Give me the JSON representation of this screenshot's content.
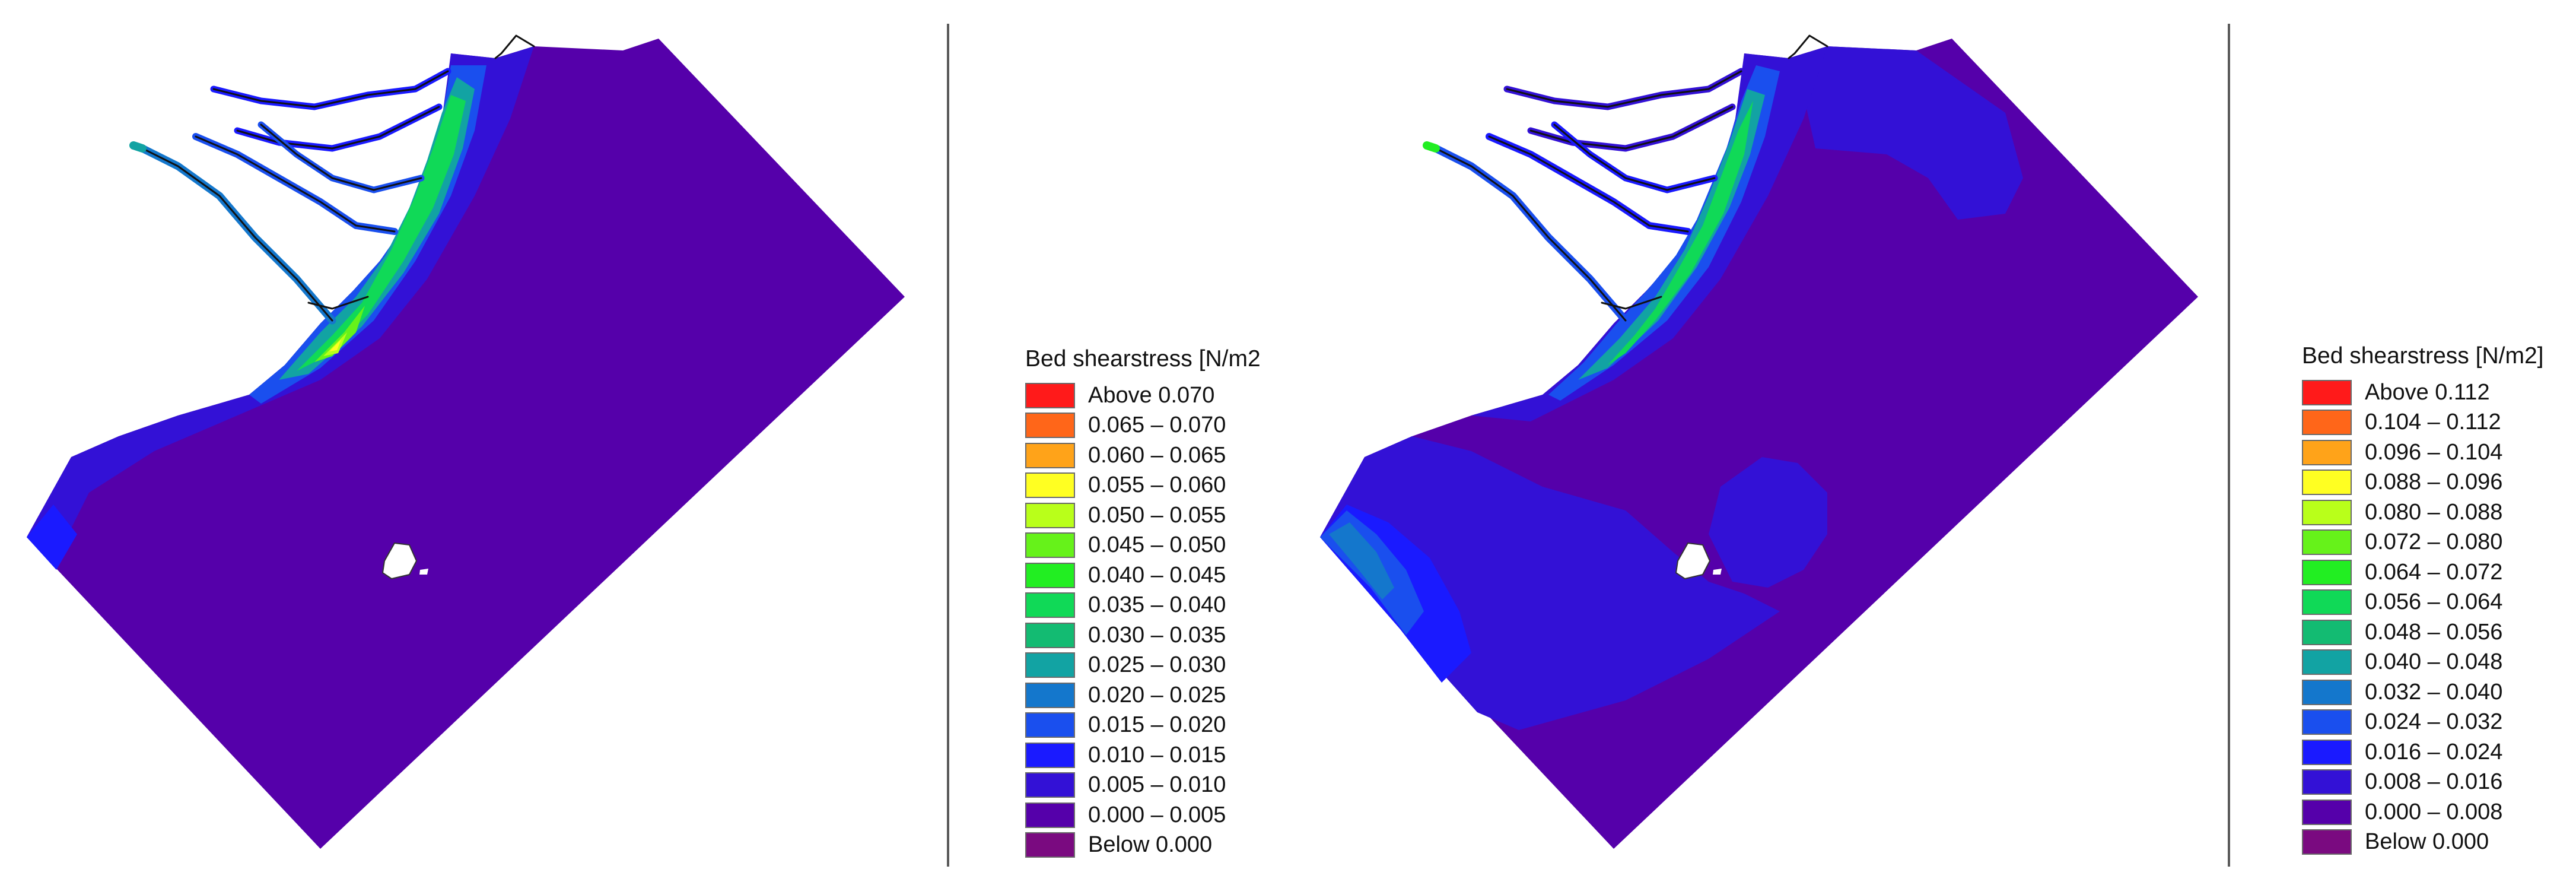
{
  "maps": [
    {
      "legend": {
        "title": "Bed shearstress [N/m2",
        "entries": [
          {
            "label": "Above  0.070",
            "color": "#ff1a1a"
          },
          {
            "label": "0.065 – 0.070",
            "color": "#ff6619"
          },
          {
            "label": "0.060 – 0.065",
            "color": "#ffa319"
          },
          {
            "label": "0.055 – 0.060",
            "color": "#ffff22"
          },
          {
            "label": "0.050 – 0.055",
            "color": "#b9ff1a"
          },
          {
            "label": "0.045 – 0.050",
            "color": "#66f21a"
          },
          {
            "label": "0.040 – 0.045",
            "color": "#22ee22"
          },
          {
            "label": "0.035 – 0.040",
            "color": "#10d957"
          },
          {
            "label": "0.030 – 0.035",
            "color": "#13bb72"
          },
          {
            "label": "0.025 – 0.030",
            "color": "#12a3a3"
          },
          {
            "label": "0.020 – 0.025",
            "color": "#1477cc"
          },
          {
            "label": "0.015 – 0.020",
            "color": "#1a4fee"
          },
          {
            "label": "0.010 – 0.015",
            "color": "#1a1aff"
          },
          {
            "label": "0.005 – 0.010",
            "color": "#3311d6"
          },
          {
            "label": "0.000 – 0.005",
            "color": "#5500aa"
          },
          {
            "label": "Below  0.000",
            "color": "#7a0a80"
          }
        ]
      }
    },
    {
      "legend": {
        "title": "Bed shearstress [N/m2]",
        "entries": [
          {
            "label": "Above  0.112",
            "color": "#ff1a1a"
          },
          {
            "label": "0.104 – 0.112",
            "color": "#ff6619"
          },
          {
            "label": "0.096 – 0.104",
            "color": "#ffa319"
          },
          {
            "label": "0.088 – 0.096",
            "color": "#ffff22"
          },
          {
            "label": "0.080 – 0.088",
            "color": "#b9ff1a"
          },
          {
            "label": "0.072 – 0.080",
            "color": "#66f21a"
          },
          {
            "label": "0.064 – 0.072",
            "color": "#22ee22"
          },
          {
            "label": "0.056 – 0.064",
            "color": "#10d957"
          },
          {
            "label": "0.048 – 0.056",
            "color": "#13bb72"
          },
          {
            "label": "0.040 – 0.048",
            "color": "#12a3a3"
          },
          {
            "label": "0.032 – 0.040",
            "color": "#1477cc"
          },
          {
            "label": "0.024 – 0.032",
            "color": "#1a4fee"
          },
          {
            "label": "0.016 – 0.024",
            "color": "#1a1aff"
          },
          {
            "label": "0.008 – 0.016",
            "color": "#3311d6"
          },
          {
            "label": "0.000 – 0.008",
            "color": "#5500aa"
          },
          {
            "label": "Below  0.000",
            "color": "#7a0a80"
          }
        ]
      }
    }
  ]
}
